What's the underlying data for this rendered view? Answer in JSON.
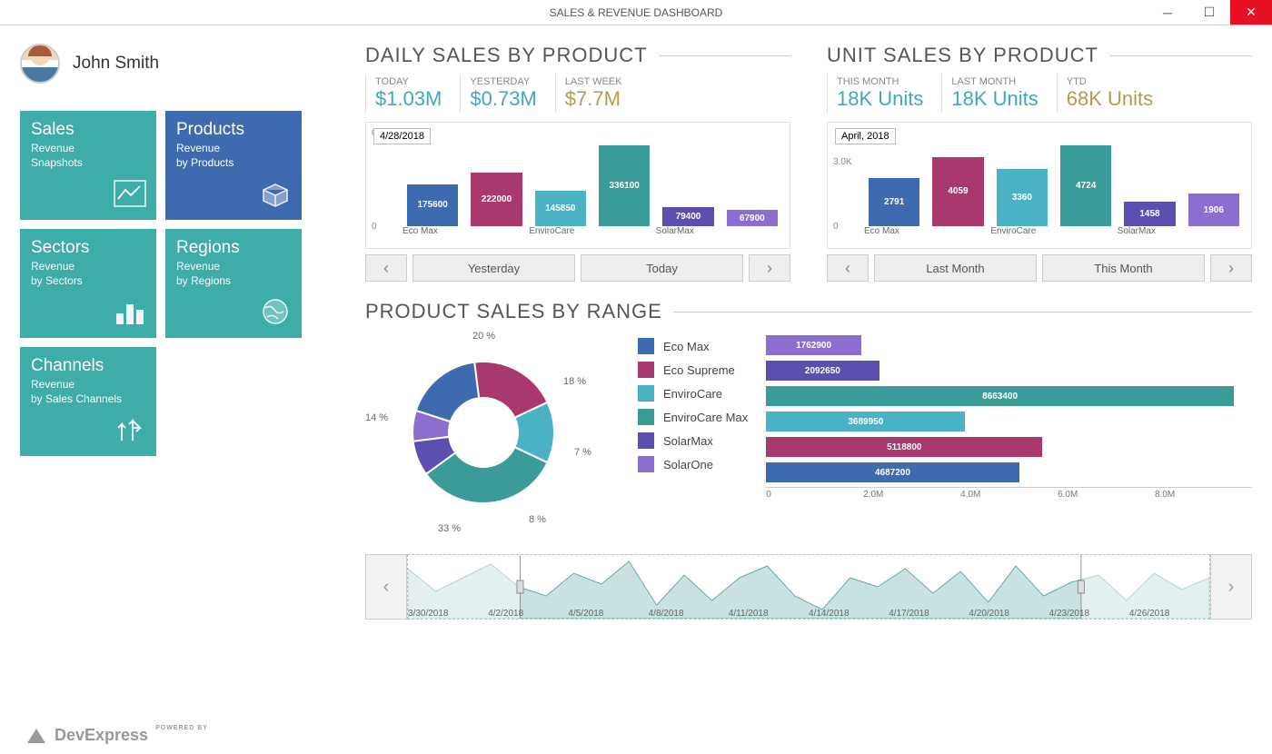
{
  "window": {
    "title": "SALES & REVENUE DASHBOARD"
  },
  "user": {
    "name": "John Smith"
  },
  "tiles": [
    {
      "title": "Sales",
      "sub": "Revenue\nSnapshots",
      "bg": "#3eaca7",
      "icon": "chart"
    },
    {
      "title": "Products",
      "sub": "Revenue\nby Products",
      "bg": "#3e6bb0",
      "icon": "box"
    },
    {
      "title": "Sectors",
      "sub": "Revenue\nby Sectors",
      "bg": "#3eaca7",
      "icon": "bars"
    },
    {
      "title": "Regions",
      "sub": "Revenue\nby Regions",
      "bg": "#3eaca7",
      "icon": "globe"
    },
    {
      "title": "Channels",
      "sub": "Revenue\nby Sales Channels",
      "bg": "#3eaca7",
      "icon": "arrows"
    }
  ],
  "colors": {
    "series": [
      "#3e6bb0",
      "#a8386e",
      "#4bb2c5",
      "#3a9b98",
      "#5b4fb0",
      "#8b6ecf"
    ],
    "summary_value": "#3ea8c4",
    "summary_value_alt": "#b89a4a"
  },
  "daily": {
    "title": "DAILY SALES BY PRODUCT",
    "summary": [
      {
        "label": "TODAY",
        "value": "$1.03M",
        "alt": false
      },
      {
        "label": "YESTERDAY",
        "value": "$0.73M",
        "alt": false
      },
      {
        "label": "LAST WEEK",
        "value": "$7.7M",
        "alt": true
      }
    ],
    "date_box": "4/28/2018",
    "y_tick": "0.2M",
    "ymax": 370000,
    "categories": [
      "Eco Max",
      "EnviroCare",
      "SolarMax"
    ],
    "bars": [
      {
        "value": 175600,
        "color": "#3e6bb0"
      },
      {
        "value": 222000,
        "color": "#a8386e"
      },
      {
        "value": 145850,
        "color": "#4bb2c5"
      },
      {
        "value": 336100,
        "color": "#3a9b98"
      },
      {
        "value": 79400,
        "color": "#5b4fb0"
      },
      {
        "value": 67900,
        "color": "#8b6ecf"
      }
    ],
    "buttons": {
      "left": "Yesterday",
      "right": "Today"
    }
  },
  "unit": {
    "title": "UNIT SALES BY PRODUCT",
    "summary": [
      {
        "label": "THIS MONTH",
        "value": "18K Units",
        "alt": false
      },
      {
        "label": "LAST MONTH",
        "value": "18K Units",
        "alt": false
      },
      {
        "label": "YTD",
        "value": "68K Units",
        "alt": true
      }
    ],
    "date_box": "April, 2018",
    "y_tick": "3.0K",
    "ymax": 5200,
    "categories": [
      "Eco Max",
      "EnviroCare",
      "SolarMax"
    ],
    "bars": [
      {
        "value": 2791,
        "color": "#3e6bb0"
      },
      {
        "value": 4059,
        "color": "#a8386e"
      },
      {
        "value": 3360,
        "color": "#4bb2c5"
      },
      {
        "value": 4724,
        "color": "#3a9b98"
      },
      {
        "value": 1458,
        "color": "#5b4fb0"
      },
      {
        "value": 1906,
        "color": "#8b6ecf"
      }
    ],
    "buttons": {
      "left": "Last Month",
      "right": "This Month"
    }
  },
  "range_sales": {
    "title": "PRODUCT SALES BY RANGE",
    "donut": {
      "slices": [
        {
          "label": "Eco Max",
          "pct": 18,
          "color": "#3e6bb0"
        },
        {
          "label": "Eco Supreme",
          "pct": 20,
          "color": "#a8386e"
        },
        {
          "label": "EnviroCare",
          "pct": 14,
          "color": "#4bb2c5"
        },
        {
          "label": "EnviroCare Max",
          "pct": 33,
          "color": "#3a9b98"
        },
        {
          "label": "SolarMax",
          "pct": 8,
          "color": "#5b4fb0"
        },
        {
          "label": "SolarOne",
          "pct": 7,
          "color": "#8b6ecf"
        }
      ],
      "label_positions": [
        {
          "text": "20 %",
          "x": 118,
          "y": 0
        },
        {
          "text": "18 %",
          "x": 218,
          "y": 50
        },
        {
          "text": "7 %",
          "x": 230,
          "y": 128
        },
        {
          "text": "8 %",
          "x": 180,
          "y": 202
        },
        {
          "text": "33 %",
          "x": 80,
          "y": 212
        },
        {
          "text": "14 %",
          "x": 0,
          "y": 90
        }
      ]
    },
    "hbar": {
      "xmax": 9000000,
      "ticks": [
        "0",
        "2.0M",
        "4.0M",
        "6.0M",
        "8.0M"
      ],
      "bars": [
        {
          "value": 1762900,
          "color": "#8b6ecf"
        },
        {
          "value": 2092650,
          "color": "#5b4fb0"
        },
        {
          "value": 8663400,
          "color": "#3a9b98"
        },
        {
          "value": 3689950,
          "color": "#4bb2c5"
        },
        {
          "value": 5118800,
          "color": "#a8386e"
        },
        {
          "value": 4687200,
          "color": "#3e6bb0"
        }
      ]
    }
  },
  "range_slider": {
    "dates": [
      "3/30/2018",
      "4/2/2018",
      "4/5/2018",
      "4/8/2018",
      "4/11/2018",
      "4/14/2018",
      "4/17/2018",
      "4/20/2018",
      "4/23/2018",
      "4/26/2018"
    ],
    "points": [
      55,
      30,
      45,
      60,
      35,
      25,
      50,
      38,
      63,
      15,
      48,
      20,
      45,
      58,
      25,
      10,
      45,
      35,
      55,
      28,
      52,
      18,
      58,
      25,
      40,
      48,
      20,
      50,
      32,
      45
    ],
    "color": "#9cc9c7",
    "selected_start_frac": 0.14,
    "selected_end_frac": 0.84
  },
  "footer": {
    "brand": "DevExpress",
    "powered": "POWERED BY"
  }
}
